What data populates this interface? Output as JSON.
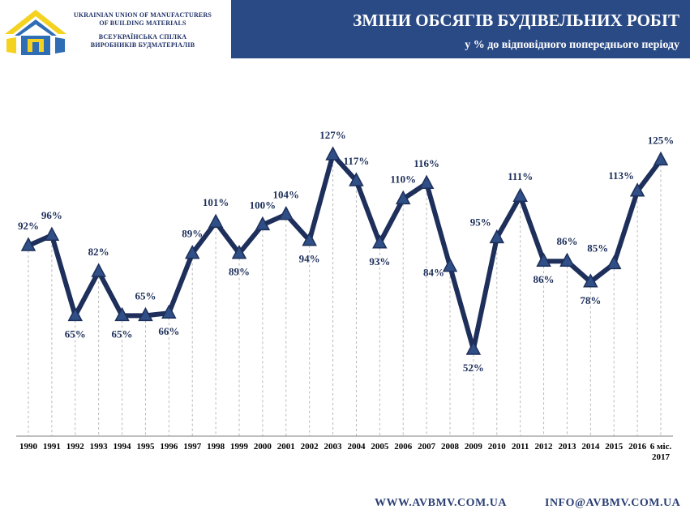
{
  "header": {
    "org_en_1": "UKRAINIAN UNION OF MANUFACTURERS",
    "org_en_2": "OF BUILDING MATERIALS",
    "org_ua_1": "ВСЕУКРАЇНСЬКА СПІЛКА",
    "org_ua_2": "ВИРОБНИКІВ БУДМАТЕРІАЛІВ",
    "title": "ЗМІНИ ОБСЯГІВ БУДІВЕЛЬНИХ РОБІТ",
    "subtitle": "у % до відповідного попереднього періоду"
  },
  "footer": {
    "website": "WWW.AVBMV.COM.UA",
    "email": "INFO@AVBMV.COM.UA"
  },
  "colors": {
    "header_band": "#2a4a86",
    "line": "#1d2f5a",
    "marker": "#2f4f86",
    "label": "#1d2f5a",
    "logo_blue": "#2f6db5",
    "logo_yellow": "#f4d21f"
  },
  "chart_data": {
    "type": "line",
    "title": "ЗМІНИ ОБСЯГІВ БУДІВЕЛЬНИХ РОБІТ",
    "subtitle": "у % до відповідного попереднього періоду",
    "categories": [
      "1990",
      "1991",
      "1992",
      "1993",
      "1994",
      "1995",
      "1996",
      "1997",
      "1998",
      "1999",
      "2000",
      "2001",
      "2002",
      "2003",
      "2004",
      "2005",
      "2006",
      "2007",
      "2008",
      "2009",
      "2010",
      "2011",
      "2012",
      "2013",
      "2014",
      "2015",
      "2016",
      "6 міс. 2017"
    ],
    "series": [
      {
        "values": [
          92,
          96,
          65,
          82,
          65,
          65,
          66,
          89,
          101,
          89,
          100,
          104,
          94,
          127,
          117,
          93,
          110,
          116,
          84,
          52,
          95,
          111,
          86,
          86,
          78,
          85,
          113,
          125
        ],
        "labels": [
          "92%",
          "96%",
          "65%",
          "82%",
          "65%",
          "65%",
          "66%",
          "89%",
          "101%",
          "89%",
          "100%",
          "104%",
          "94%",
          "127%",
          "117%",
          "93%",
          "110%",
          "116%",
          "84%",
          "52%",
          "95%",
          "111%",
          "86%",
          "86%",
          "78%",
          "85%",
          "113%",
          "125%"
        ]
      }
    ],
    "label_positions": [
      "above",
      "above",
      "below",
      "above",
      "below",
      "above",
      "below",
      "above",
      "above",
      "below",
      "above",
      "above",
      "below",
      "above",
      "above",
      "below",
      "above",
      "above",
      "below-left",
      "below",
      "above-left",
      "above",
      "below",
      "above",
      "below",
      "above-left",
      "above-left",
      "above"
    ],
    "marker": "triangle",
    "drop_lines": true,
    "grid": false,
    "legend": "none"
  }
}
